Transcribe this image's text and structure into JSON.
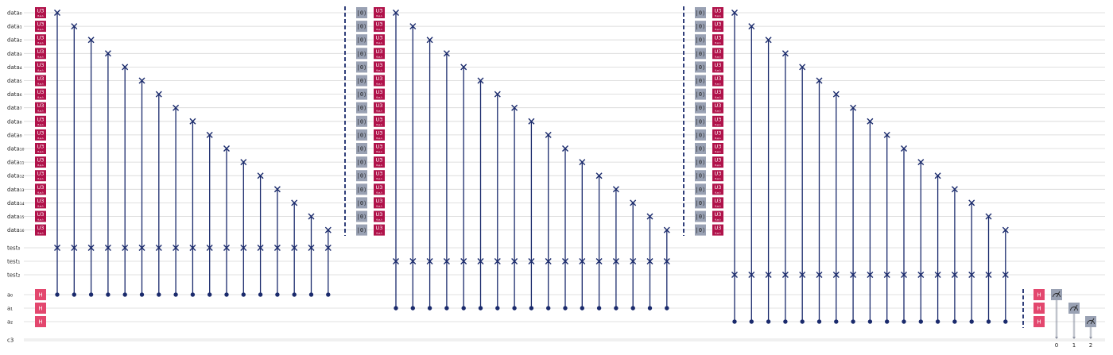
{
  "circuit": {
    "wires": {
      "data": [
        "data₀",
        "data₁",
        "data₂",
        "data₃",
        "data₄",
        "data₅",
        "data₆",
        "data₇",
        "data₈",
        "data₉",
        "data₁₀",
        "data₁₁",
        "data₁₂",
        "data₁₃",
        "data₁₄",
        "data₁₅",
        "data₁₆"
      ],
      "test": [
        "test₀",
        "test₁",
        "test₂"
      ],
      "ancilla": [
        "a₀",
        "a₁",
        "a₂"
      ],
      "classical": "c3"
    },
    "gates": {
      "u3_label": "U3",
      "u3_param": "θ,φ,λ",
      "h_label": "H",
      "reset_label": "|0⟩"
    },
    "measure_bits": [
      "0",
      "1",
      "2"
    ],
    "colors": {
      "u3": "#b0124a",
      "h": "#e3476e",
      "reset": "#99a1b3",
      "measure": "#99a1b3",
      "swap": "#1a2a6c",
      "wire": "#d6d6d6",
      "barrier": "#1a2a6c"
    },
    "icons": [
      "swap-x-icon",
      "control-dot-icon",
      "meter-icon",
      "barrier-icon"
    ]
  }
}
